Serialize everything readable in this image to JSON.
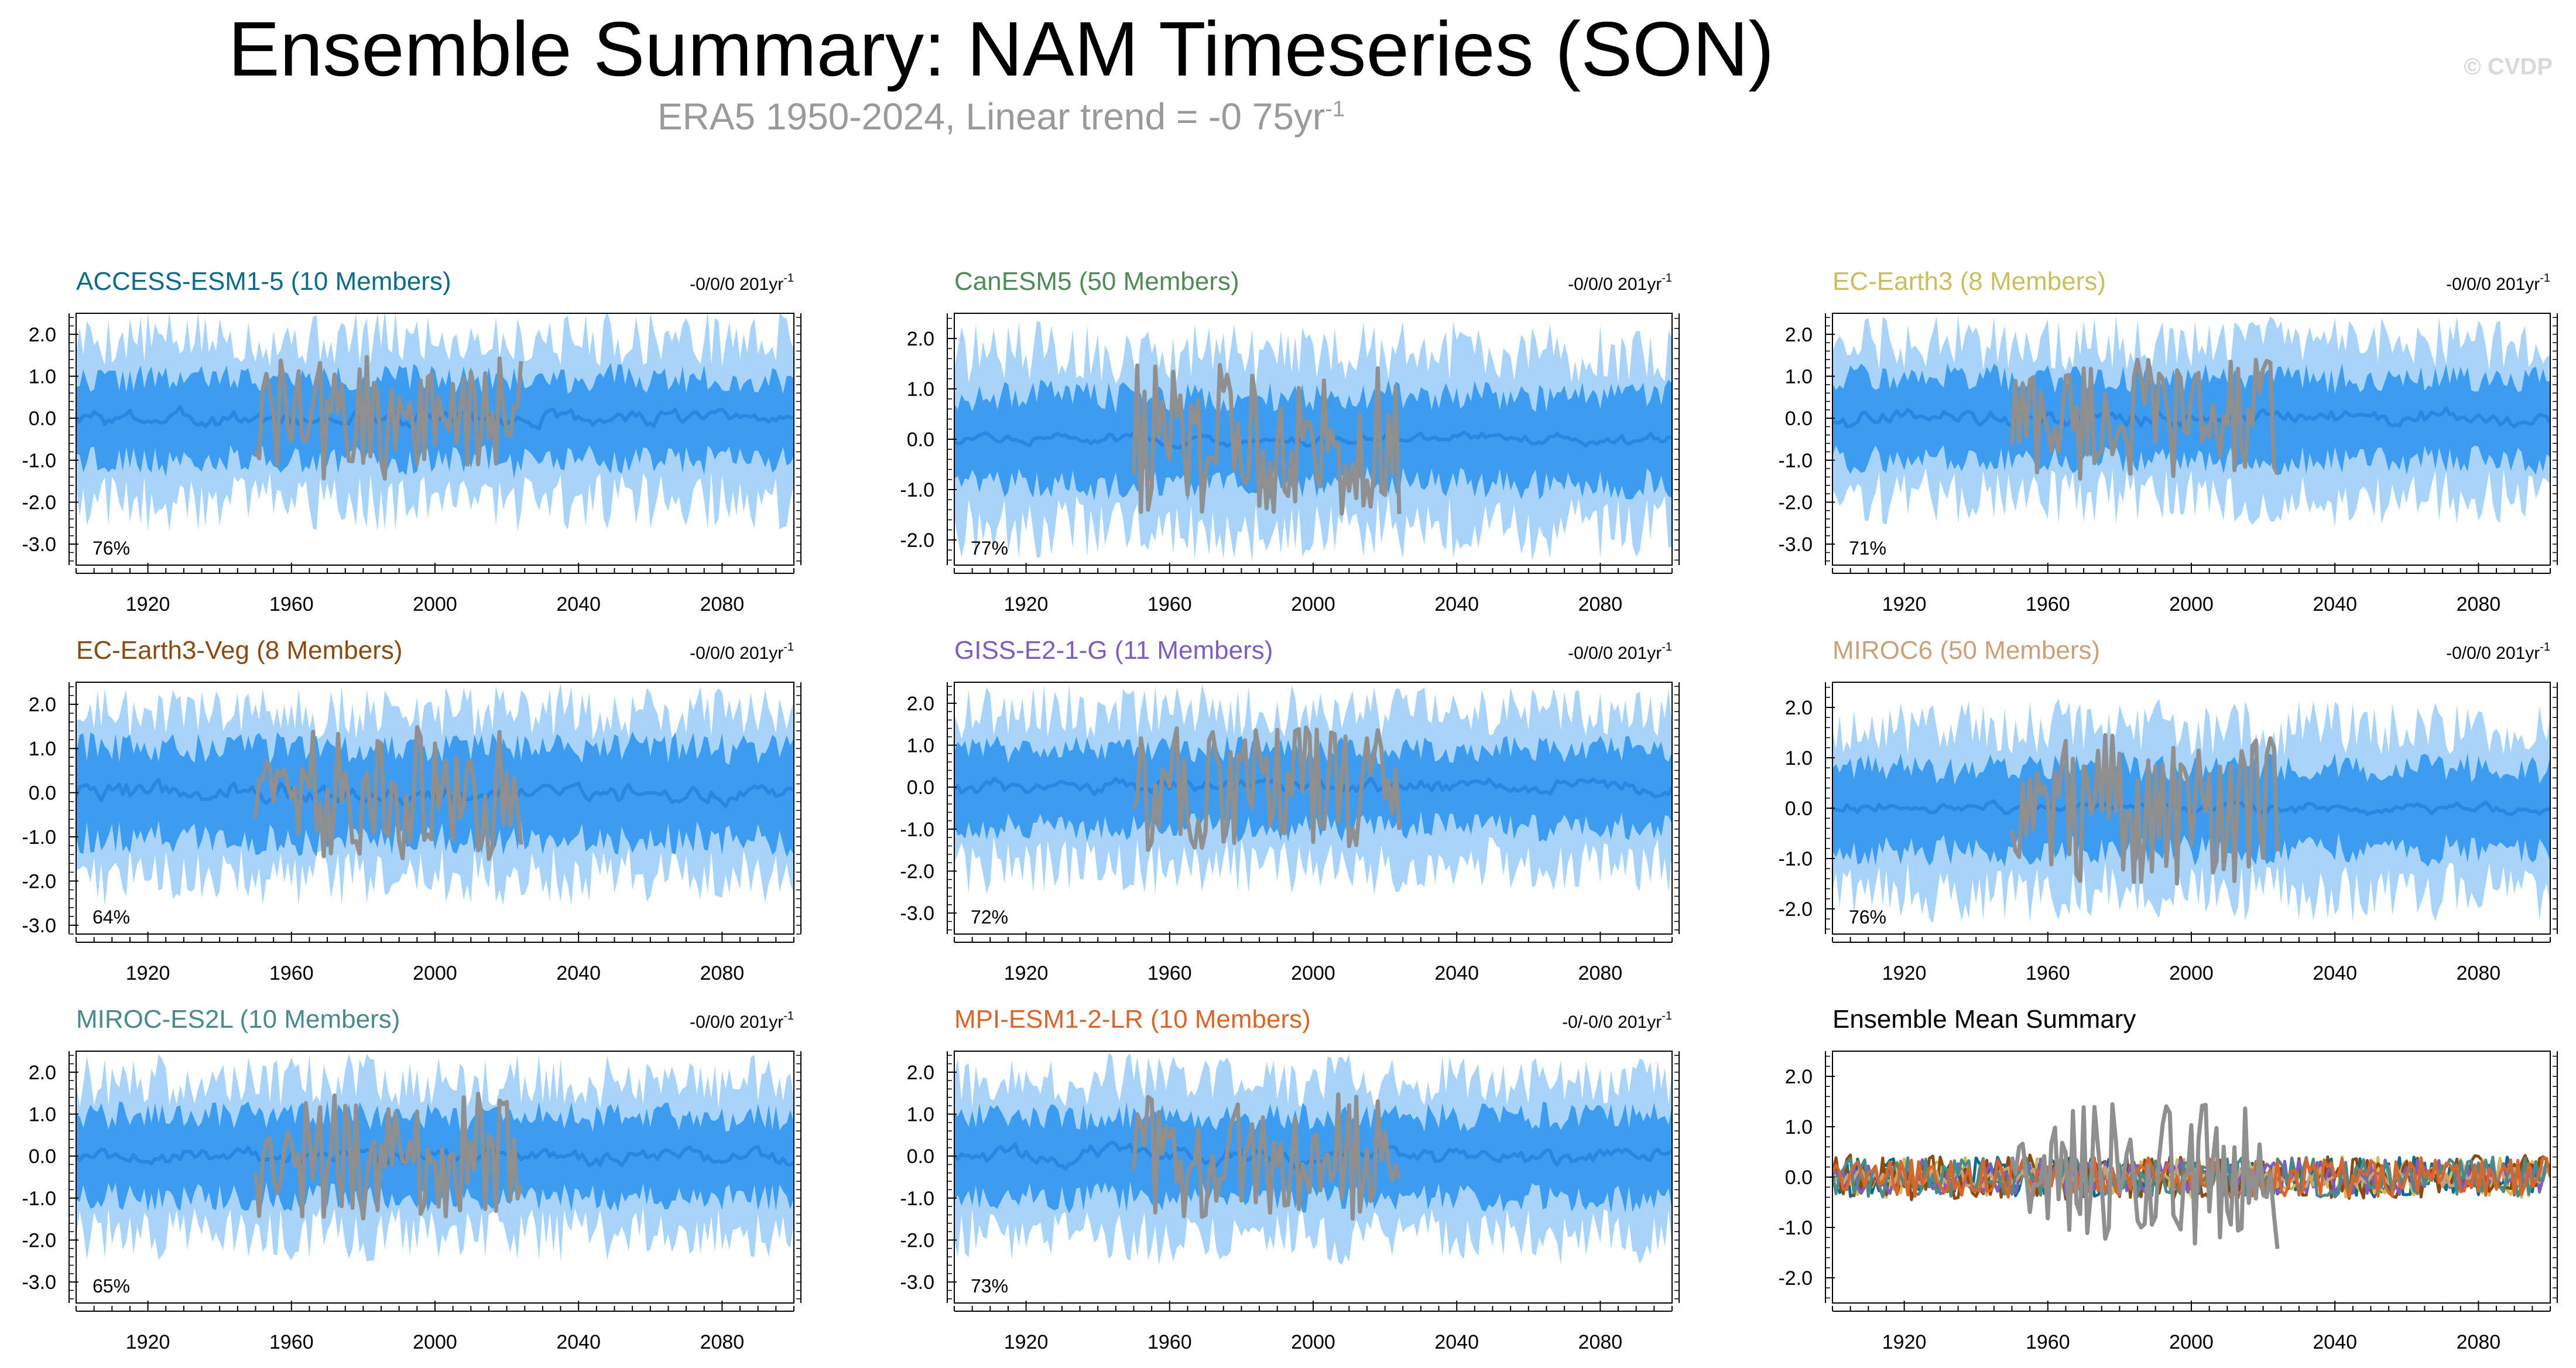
{
  "page": {
    "title": "Ensemble Summary: NAM Timeseries (SON)",
    "subtitle_main": "ERA5 1950-2024, Linear trend = -0 75yr",
    "subtitle_sup": "-1",
    "brand": "© CVDP"
  },
  "colors": {
    "band_outer": "#a8d3fb",
    "band_inner": "#3b9cf1",
    "ensemble_mean": "#2b86e0",
    "observation": "#8f8f8f",
    "axis": "#000000"
  },
  "chart_data": [
    {
      "type": "area",
      "title": "ACCESS-ESM1-5 (10 Members)",
      "title_color": "#0b6b8a",
      "trend_label": "-0/0/0 201yr",
      "trend_sup": "-1",
      "percent_label": "76%",
      "xlim": [
        1900,
        2100
      ],
      "x_ticks": [
        1920,
        1960,
        2000,
        2040,
        2080
      ],
      "ylim": [
        -3.5,
        2.5
      ],
      "y_ticks": [
        2.0,
        1.0,
        0.0,
        -1.0,
        -2.0,
        -3.0
      ],
      "y_tick_labels": [
        "2.0",
        "1.0",
        "0.0",
        "-1.0",
        "-2.0",
        "-3.0"
      ],
      "series": [
        {
          "name": "ensemble 10-90% range",
          "kind": "band",
          "amplitude": 1.9
        },
        {
          "name": "ensemble 25-75% range",
          "kind": "band",
          "amplitude": 0.95
        },
        {
          "name": "ensemble mean",
          "kind": "line",
          "amplitude": 0.35
        },
        {
          "name": "ERA5",
          "kind": "line",
          "x_range": [
            1950,
            2024
          ],
          "amplitude": 1.5
        }
      ]
    },
    {
      "type": "area",
      "title": "CanESM5 (50 Members)",
      "title_color": "#4f8a57",
      "trend_label": "-0/0/0 201yr",
      "trend_sup": "-1",
      "percent_label": "77%",
      "xlim": [
        1900,
        2100
      ],
      "x_ticks": [
        1920,
        1960,
        2000,
        2040,
        2080
      ],
      "ylim": [
        -2.5,
        2.5
      ],
      "y_ticks": [
        2.0,
        1.0,
        0.0,
        -1.0,
        -2.0
      ],
      "y_tick_labels": [
        "2.0",
        "1.0",
        "0.0",
        "-1.0",
        "-2.0"
      ],
      "series": [
        {
          "name": "ensemble 10-90% range",
          "kind": "band",
          "amplitude": 1.7
        },
        {
          "name": "ensemble 25-75% range",
          "kind": "band",
          "amplitude": 0.85
        },
        {
          "name": "ensemble mean",
          "kind": "line",
          "amplitude": 0.15
        },
        {
          "name": "ERA5",
          "kind": "line",
          "x_range": [
            1950,
            2024
          ],
          "amplitude": 1.5
        }
      ]
    },
    {
      "type": "area",
      "title": "EC-Earth3 (8 Members)",
      "title_color": "#c9bd5e",
      "trend_label": "-0/0/0 201yr",
      "trend_sup": "-1",
      "percent_label": "71%",
      "xlim": [
        1900,
        2100
      ],
      "x_ticks": [
        1920,
        1960,
        2000,
        2040,
        2080
      ],
      "ylim": [
        -3.5,
        2.5
      ],
      "y_ticks": [
        2.0,
        1.0,
        0.0,
        -1.0,
        -2.0,
        -3.0
      ],
      "y_tick_labels": [
        "2.0",
        "1.0",
        "0.0",
        "-1.0",
        "-2.0",
        "-3.0"
      ],
      "series": [
        {
          "name": "ensemble 10-90% range",
          "kind": "band",
          "amplitude": 1.8
        },
        {
          "name": "ensemble 25-75% range",
          "kind": "band",
          "amplitude": 0.95
        },
        {
          "name": "ensemble mean",
          "kind": "line",
          "amplitude": 0.35
        },
        {
          "name": "ERA5",
          "kind": "line",
          "x_range": [
            1950,
            2024
          ],
          "amplitude": 1.5
        }
      ]
    },
    {
      "type": "area",
      "title": "EC-Earth3-Veg (8 Members)",
      "title_color": "#8b4a12",
      "trend_label": "-0/0/0 201yr",
      "trend_sup": "-1",
      "percent_label": "64%",
      "xlim": [
        1900,
        2100
      ],
      "x_ticks": [
        1920,
        1960,
        2000,
        2040,
        2080
      ],
      "ylim": [
        -3.2,
        2.5
      ],
      "y_ticks": [
        2.0,
        1.0,
        0.0,
        -1.0,
        -2.0,
        -3.0
      ],
      "y_tick_labels": [
        "2.0",
        "1.0",
        "0.0",
        "-1.0",
        "-2.0",
        "-3.0"
      ],
      "series": [
        {
          "name": "ensemble 10-90% range",
          "kind": "band",
          "amplitude": 1.8
        },
        {
          "name": "ensemble 25-75% range",
          "kind": "band",
          "amplitude": 1.0
        },
        {
          "name": "ensemble mean",
          "kind": "line",
          "amplitude": 0.4
        },
        {
          "name": "ERA5",
          "kind": "line",
          "x_range": [
            1950,
            2024
          ],
          "amplitude": 1.5
        }
      ]
    },
    {
      "type": "area",
      "title": "GISS-E2-1-G (11 Members)",
      "title_color": "#7e5dc2",
      "trend_label": "-0/0/0 201yr",
      "trend_sup": "-1",
      "percent_label": "72%",
      "xlim": [
        1900,
        2100
      ],
      "x_ticks": [
        1920,
        1960,
        2000,
        2040,
        2080
      ],
      "ylim": [
        -3.5,
        2.5
      ],
      "y_ticks": [
        2.0,
        1.0,
        0.0,
        -1.0,
        -2.0,
        -3.0
      ],
      "y_tick_labels": [
        "2.0",
        "1.0",
        "0.0",
        "-1.0",
        "-2.0",
        "-3.0"
      ],
      "series": [
        {
          "name": "ensemble 10-90% range",
          "kind": "band",
          "amplitude": 1.8
        },
        {
          "name": "ensemble 25-75% range",
          "kind": "band",
          "amplitude": 0.9
        },
        {
          "name": "ensemble mean",
          "kind": "line",
          "amplitude": 0.3
        },
        {
          "name": "ERA5",
          "kind": "line",
          "x_range": [
            1950,
            2024
          ],
          "amplitude": 1.5
        }
      ]
    },
    {
      "type": "area",
      "title": "MIROC6 (50 Members)",
      "title_color": "#c9a27a",
      "trend_label": "-0/0/0 201yr",
      "trend_sup": "-1",
      "percent_label": "76%",
      "xlim": [
        1900,
        2100
      ],
      "x_ticks": [
        1920,
        1960,
        2000,
        2040,
        2080
      ],
      "ylim": [
        -2.5,
        2.5
      ],
      "y_ticks": [
        2.0,
        1.0,
        0.0,
        -1.0,
        -2.0
      ],
      "y_tick_labels": [
        "2.0",
        "1.0",
        "0.0",
        "-1.0",
        "-2.0"
      ],
      "series": [
        {
          "name": "ensemble 10-90% range",
          "kind": "band",
          "amplitude": 1.6
        },
        {
          "name": "ensemble 25-75% range",
          "kind": "band",
          "amplitude": 0.8
        },
        {
          "name": "ensemble mean",
          "kind": "line",
          "amplitude": 0.15
        },
        {
          "name": "ERA5",
          "kind": "line",
          "x_range": [
            1950,
            2024
          ],
          "amplitude": 1.5
        }
      ]
    },
    {
      "type": "area",
      "title": "MIROC-ES2L (10 Members)",
      "title_color": "#4b8a8a",
      "trend_label": "-0/0/0 201yr",
      "trend_sup": "-1",
      "percent_label": "65%",
      "xlim": [
        1900,
        2100
      ],
      "x_ticks": [
        1920,
        1960,
        2000,
        2040,
        2080
      ],
      "ylim": [
        -3.5,
        2.5
      ],
      "y_ticks": [
        2.0,
        1.0,
        0.0,
        -1.0,
        -2.0,
        -3.0
      ],
      "y_tick_labels": [
        "2.0",
        "1.0",
        "0.0",
        "-1.0",
        "-2.0",
        "-3.0"
      ],
      "series": [
        {
          "name": "ensemble 10-90% range",
          "kind": "band",
          "amplitude": 1.8
        },
        {
          "name": "ensemble 25-75% range",
          "kind": "band",
          "amplitude": 0.95
        },
        {
          "name": "ensemble mean",
          "kind": "line",
          "amplitude": 0.35
        },
        {
          "name": "ERA5",
          "kind": "line",
          "x_range": [
            1950,
            2024
          ],
          "amplitude": 1.5
        }
      ]
    },
    {
      "type": "area",
      "title": "MPI-ESM1-2-LR (10 Members)",
      "title_color": "#d9652b",
      "trend_label": "-0/-0/0 201yr",
      "trend_sup": "-1",
      "percent_label": "73%",
      "xlim": [
        1900,
        2100
      ],
      "x_ticks": [
        1920,
        1960,
        2000,
        2040,
        2080
      ],
      "ylim": [
        -3.5,
        2.5
      ],
      "y_ticks": [
        2.0,
        1.0,
        0.0,
        -1.0,
        -2.0,
        -3.0
      ],
      "y_tick_labels": [
        "2.0",
        "1.0",
        "0.0",
        "-1.0",
        "-2.0",
        "-3.0"
      ],
      "series": [
        {
          "name": "ensemble 10-90% range",
          "kind": "band",
          "amplitude": 1.8
        },
        {
          "name": "ensemble 25-75% range",
          "kind": "band",
          "amplitude": 0.95
        },
        {
          "name": "ensemble mean",
          "kind": "line",
          "amplitude": 0.35
        },
        {
          "name": "ERA5",
          "kind": "line",
          "x_range": [
            1950,
            2024
          ],
          "amplitude": 1.5
        }
      ]
    },
    {
      "type": "line",
      "title": "Ensemble Mean Summary",
      "title_color": "#000000",
      "xlim": [
        1900,
        2100
      ],
      "x_ticks": [
        1920,
        1960,
        2000,
        2040,
        2080
      ],
      "ylim": [
        -2.5,
        2.5
      ],
      "y_ticks": [
        2.0,
        1.0,
        0.0,
        -1.0,
        -2.0
      ],
      "y_tick_labels": [
        "2.0",
        "1.0",
        "0.0",
        "-1.0",
        "-2.0"
      ],
      "series": [
        {
          "name": "ACCESS-ESM1-5",
          "color": "#0b6b8a",
          "amplitude": 0.4
        },
        {
          "name": "CanESM5",
          "color": "#4f8a57",
          "amplitude": 0.2
        },
        {
          "name": "EC-Earth3",
          "color": "#c9bd5e",
          "amplitude": 0.4
        },
        {
          "name": "EC-Earth3-Veg",
          "color": "#8b4a12",
          "amplitude": 0.45
        },
        {
          "name": "GISS-E2-1-G",
          "color": "#7e5dc2",
          "amplitude": 0.35
        },
        {
          "name": "MIROC6",
          "color": "#c9a27a",
          "amplitude": 0.2
        },
        {
          "name": "MIROC-ES2L",
          "color": "#4b8a8a",
          "amplitude": 0.4
        },
        {
          "name": "MPI-ESM1-2-LR",
          "color": "#d9652b",
          "amplitude": 0.4
        },
        {
          "name": "ERA5",
          "color": "#8f8f8f",
          "x_range": [
            1950,
            2024
          ],
          "amplitude": 1.5
        }
      ]
    }
  ]
}
